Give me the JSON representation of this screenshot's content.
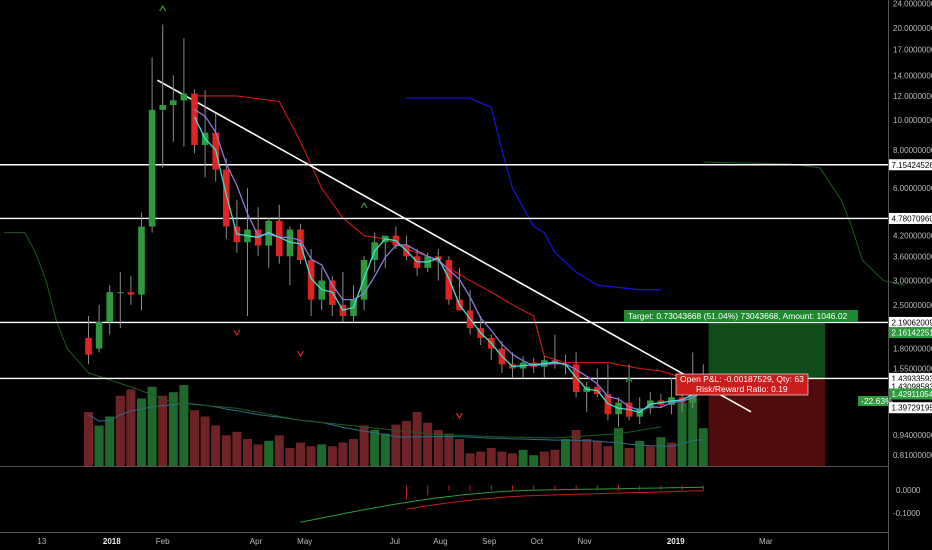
{
  "colors": {
    "background": "#000000",
    "bull": "#2e9a3e",
    "bear": "#e02424",
    "vol_bull": "#1f6a2a",
    "vol_bear": "#6e2326",
    "horizontal_line": "#ffffff",
    "trendline": "#ffffff",
    "ichimoku_red": "#d01818",
    "ichimoku_blue": "#1414c8",
    "ma_cyan": "#40e0d0",
    "ma_purple": "#8a7ad8",
    "lagging_green": "#1d5a1d",
    "target_green": "#1e8a2e",
    "stop_red": "#6a1010"
  },
  "chart_data": {
    "type": "candlestick",
    "timeframe": "weekly",
    "y_scale": "log",
    "price_axis_ticks": [
      "24.00000000",
      "20.00000000",
      "17.00000000",
      "14.00000000",
      "12.00000000",
      "10.00000000",
      "8.00000000",
      "6.00000000",
      "4.20000000",
      "3.60000000",
      "3.00000000",
      "2.50000000",
      "1.80000000",
      "1.55000000",
      "0.94000000",
      "0.81000000"
    ],
    "price_axis_tick_values": [
      24,
      20,
      17,
      14,
      12,
      10,
      8,
      6,
      4.2,
      3.6,
      3.0,
      2.5,
      1.8,
      1.55,
      0.94,
      0.81
    ],
    "x_axis_labels": [
      {
        "text": "13",
        "bold": false,
        "index": -4.4
      },
      {
        "text": "2018",
        "bold": true,
        "index": 2.2
      },
      {
        "text": "Feb",
        "bold": false,
        "index": 7.0
      },
      {
        "text": "Apr",
        "bold": false,
        "index": 15.8
      },
      {
        "text": "May",
        "bold": false,
        "index": 20.4
      },
      {
        "text": "Jul",
        "bold": false,
        "index": 28.9
      },
      {
        "text": "Aug",
        "bold": false,
        "index": 33.2
      },
      {
        "text": "Sep",
        "bold": false,
        "index": 37.8
      },
      {
        "text": "Oct",
        "bold": false,
        "index": 42.3
      },
      {
        "text": "Nov",
        "bold": false,
        "index": 46.8
      },
      {
        "text": "2019",
        "bold": true,
        "index": 55.4
      },
      {
        "text": "Mar",
        "bold": false,
        "index": 63.9
      }
    ],
    "candles": [
      {
        "o": 1.95,
        "h": 2.3,
        "l": 1.6,
        "c": 1.72
      },
      {
        "o": 1.8,
        "h": 2.5,
        "l": 1.75,
        "c": 2.2
      },
      {
        "o": 2.2,
        "h": 2.9,
        "l": 2.0,
        "c": 2.75
      },
      {
        "o": 2.75,
        "h": 3.2,
        "l": 2.1,
        "c": 2.75
      },
      {
        "o": 2.75,
        "h": 3.1,
        "l": 2.5,
        "c": 2.7
      },
      {
        "o": 2.7,
        "h": 5.0,
        "l": 2.4,
        "c": 4.5
      },
      {
        "o": 4.5,
        "h": 16.0,
        "l": 4.3,
        "c": 10.8
      },
      {
        "o": 10.8,
        "h": 20.5,
        "l": 7.0,
        "c": 11.2
      },
      {
        "o": 11.2,
        "h": 14.0,
        "l": 8.5,
        "c": 11.6
      },
      {
        "o": 11.6,
        "h": 18.5,
        "l": 8.2,
        "c": 12.2
      },
      {
        "o": 12.2,
        "h": 12.6,
        "l": 7.8,
        "c": 8.3
      },
      {
        "o": 8.3,
        "h": 12.5,
        "l": 6.5,
        "c": 9.1
      },
      {
        "o": 9.1,
        "h": 10.5,
        "l": 6.3,
        "c": 6.9
      },
      {
        "o": 6.9,
        "h": 7.5,
        "l": 4.1,
        "c": 4.5
      },
      {
        "o": 4.5,
        "h": 5.5,
        "l": 3.7,
        "c": 4.0
      },
      {
        "o": 4.0,
        "h": 6.0,
        "l": 2.3,
        "c": 4.4
      },
      {
        "o": 4.4,
        "h": 5.2,
        "l": 3.6,
        "c": 3.9
      },
      {
        "o": 3.9,
        "h": 4.8,
        "l": 3.3,
        "c": 4.7
      },
      {
        "o": 4.7,
        "h": 5.3,
        "l": 3.4,
        "c": 3.6
      },
      {
        "o": 3.6,
        "h": 4.5,
        "l": 2.9,
        "c": 4.4
      },
      {
        "o": 4.4,
        "h": 4.6,
        "l": 3.4,
        "c": 3.5
      },
      {
        "o": 3.5,
        "h": 3.8,
        "l": 2.3,
        "c": 2.6
      },
      {
        "o": 2.6,
        "h": 3.3,
        "l": 2.4,
        "c": 3.0
      },
      {
        "o": 3.0,
        "h": 3.1,
        "l": 2.3,
        "c": 2.5
      },
      {
        "o": 2.5,
        "h": 3.2,
        "l": 2.2,
        "c": 2.3
      },
      {
        "o": 2.3,
        "h": 2.9,
        "l": 2.2,
        "c": 2.6
      },
      {
        "o": 2.6,
        "h": 3.6,
        "l": 2.4,
        "c": 3.5
      },
      {
        "o": 3.5,
        "h": 4.3,
        "l": 3.2,
        "c": 4.0
      },
      {
        "o": 4.0,
        "h": 4.1,
        "l": 3.3,
        "c": 4.2
      },
      {
        "o": 4.2,
        "h": 4.5,
        "l": 3.8,
        "c": 3.9
      },
      {
        "o": 3.9,
        "h": 4.2,
        "l": 3.5,
        "c": 3.6
      },
      {
        "o": 3.6,
        "h": 3.8,
        "l": 3.1,
        "c": 3.3
      },
      {
        "o": 3.3,
        "h": 3.7,
        "l": 3.2,
        "c": 3.6
      },
      {
        "o": 3.6,
        "h": 3.8,
        "l": 3.0,
        "c": 3.5
      },
      {
        "o": 3.5,
        "h": 3.6,
        "l": 2.5,
        "c": 2.6
      },
      {
        "o": 2.6,
        "h": 3.3,
        "l": 2.4,
        "c": 2.4
      },
      {
        "o": 2.4,
        "h": 2.8,
        "l": 2.0,
        "c": 2.1
      },
      {
        "o": 2.1,
        "h": 2.3,
        "l": 1.85,
        "c": 1.95
      },
      {
        "o": 1.95,
        "h": 2.0,
        "l": 1.65,
        "c": 1.8
      },
      {
        "o": 1.8,
        "h": 1.9,
        "l": 1.5,
        "c": 1.6
      },
      {
        "o": 1.6,
        "h": 1.75,
        "l": 1.45,
        "c": 1.55
      },
      {
        "o": 1.55,
        "h": 1.7,
        "l": 1.45,
        "c": 1.62
      },
      {
        "o": 1.62,
        "h": 1.68,
        "l": 1.5,
        "c": 1.57
      },
      {
        "o": 1.57,
        "h": 1.7,
        "l": 1.45,
        "c": 1.65
      },
      {
        "o": 1.65,
        "h": 2.0,
        "l": 1.55,
        "c": 1.6
      },
      {
        "o": 1.6,
        "h": 1.72,
        "l": 1.48,
        "c": 1.6
      },
      {
        "o": 1.6,
        "h": 1.75,
        "l": 1.25,
        "c": 1.3
      },
      {
        "o": 1.3,
        "h": 1.4,
        "l": 1.12,
        "c": 1.35
      },
      {
        "o": 1.35,
        "h": 1.55,
        "l": 1.25,
        "c": 1.28
      },
      {
        "o": 1.28,
        "h": 1.6,
        "l": 1.05,
        "c": 1.1
      },
      {
        "o": 1.1,
        "h": 1.25,
        "l": 1.0,
        "c": 1.2
      },
      {
        "o": 1.2,
        "h": 1.6,
        "l": 1.05,
        "c": 1.08
      },
      {
        "o": 1.08,
        "h": 1.25,
        "l": 1.02,
        "c": 1.15
      },
      {
        "o": 1.15,
        "h": 1.3,
        "l": 1.1,
        "c": 1.22
      },
      {
        "o": 1.22,
        "h": 1.28,
        "l": 1.15,
        "c": 1.18
      },
      {
        "o": 1.18,
        "h": 1.45,
        "l": 1.1,
        "c": 1.25
      },
      {
        "o": 1.25,
        "h": 1.4,
        "l": 1.12,
        "c": 1.2
      },
      {
        "o": 1.2,
        "h": 1.75,
        "l": 1.15,
        "c": 1.35
      },
      {
        "o": 1.35,
        "h": 1.6,
        "l": 1.28,
        "c": 1.43
      }
    ],
    "volume": [
      {
        "v": 0.6,
        "bull": false
      },
      {
        "v": 0.45,
        "bull": true
      },
      {
        "v": 0.55,
        "bull": true
      },
      {
        "v": 0.78,
        "bull": false
      },
      {
        "v": 0.85,
        "bull": false
      },
      {
        "v": 0.75,
        "bull": true
      },
      {
        "v": 0.88,
        "bull": true
      },
      {
        "v": 0.78,
        "bull": false
      },
      {
        "v": 0.82,
        "bull": true
      },
      {
        "v": 0.9,
        "bull": true
      },
      {
        "v": 0.62,
        "bull": false
      },
      {
        "v": 0.55,
        "bull": false
      },
      {
        "v": 0.45,
        "bull": false
      },
      {
        "v": 0.34,
        "bull": false
      },
      {
        "v": 0.38,
        "bull": false
      },
      {
        "v": 0.3,
        "bull": false
      },
      {
        "v": 0.24,
        "bull": false
      },
      {
        "v": 0.28,
        "bull": true
      },
      {
        "v": 0.34,
        "bull": false
      },
      {
        "v": 0.2,
        "bull": false
      },
      {
        "v": 0.26,
        "bull": false
      },
      {
        "v": 0.22,
        "bull": false
      },
      {
        "v": 0.24,
        "bull": true
      },
      {
        "v": 0.22,
        "bull": false
      },
      {
        "v": 0.26,
        "bull": false
      },
      {
        "v": 0.3,
        "bull": false
      },
      {
        "v": 0.45,
        "bull": false
      },
      {
        "v": 0.4,
        "bull": true
      },
      {
        "v": 0.36,
        "bull": true
      },
      {
        "v": 0.46,
        "bull": false
      },
      {
        "v": 0.5,
        "bull": false
      },
      {
        "v": 0.6,
        "bull": false
      },
      {
        "v": 0.48,
        "bull": false
      },
      {
        "v": 0.4,
        "bull": false
      },
      {
        "v": 0.36,
        "bull": false
      },
      {
        "v": 0.3,
        "bull": false
      },
      {
        "v": 0.14,
        "bull": false
      },
      {
        "v": 0.16,
        "bull": false
      },
      {
        "v": 0.2,
        "bull": false
      },
      {
        "v": 0.16,
        "bull": false
      },
      {
        "v": 0.14,
        "bull": false
      },
      {
        "v": 0.18,
        "bull": true
      },
      {
        "v": 0.12,
        "bull": true
      },
      {
        "v": 0.16,
        "bull": false
      },
      {
        "v": 0.18,
        "bull": false
      },
      {
        "v": 0.3,
        "bull": true
      },
      {
        "v": 0.4,
        "bull": false
      },
      {
        "v": 0.3,
        "bull": false
      },
      {
        "v": 0.28,
        "bull": false
      },
      {
        "v": 0.22,
        "bull": false
      },
      {
        "v": 0.42,
        "bull": true
      },
      {
        "v": 0.2,
        "bull": false
      },
      {
        "v": 0.28,
        "bull": true
      },
      {
        "v": 0.22,
        "bull": false
      },
      {
        "v": 0.32,
        "bull": true
      },
      {
        "v": 0.26,
        "bull": false
      },
      {
        "v": 0.7,
        "bull": true
      },
      {
        "v": 0.92,
        "bull": true
      },
      {
        "v": 0.42,
        "bull": true
      }
    ],
    "horizontal_levels": [
      7.15424526,
      4.7807096,
      2.19062009,
      1.43933593
    ],
    "trendline": {
      "from": {
        "index": 6.5,
        "price": 13.5
      },
      "to": {
        "index": 62.5,
        "price": 1.12
      }
    },
    "indicator_ticks": [
      "0.0000",
      "-0.1000"
    ],
    "indicator_tick_values": [
      0.0,
      -0.1
    ]
  },
  "price_tags": [
    {
      "label": "7.15424526",
      "price": 7.15424526,
      "bg": "#ffffff",
      "fg": "#000000"
    },
    {
      "label": "4.78070960",
      "price": 4.7807096,
      "bg": "#ffffff",
      "fg": "#000000"
    },
    {
      "label": "2.19062009",
      "price": 2.19062009,
      "bg": "#ffffff",
      "fg": "#000000"
    },
    {
      "label": "2.16142251",
      "price": 2.03,
      "bg": "#2e9a3e",
      "fg": "#ffffff"
    },
    {
      "label": "1.43933593",
      "price": 1.43933593,
      "bg": "#ffffff",
      "fg": "#000000"
    },
    {
      "label": "1.43098583",
      "price": 1.355,
      "bg": "#ffffff",
      "fg": "#000000"
    },
    {
      "label": "1.42911054",
      "price": 1.28,
      "bg": "#2e9a3e",
      "fg": "#ffffff"
    },
    {
      "label": "1.39729195",
      "price": 1.155,
      "bg": "#ffffff",
      "fg": "#000000"
    }
  ],
  "trade": {
    "target_label": "Target: 0.73043668 (51.04%) 73043668, Amount: 1046.02",
    "open_pl_label": "Open P&L: -0.00187529, Qty: 63",
    "risk_reward_label": "Risk/Reward Ratio: 0.19",
    "stop_badge": "-22.63%"
  }
}
